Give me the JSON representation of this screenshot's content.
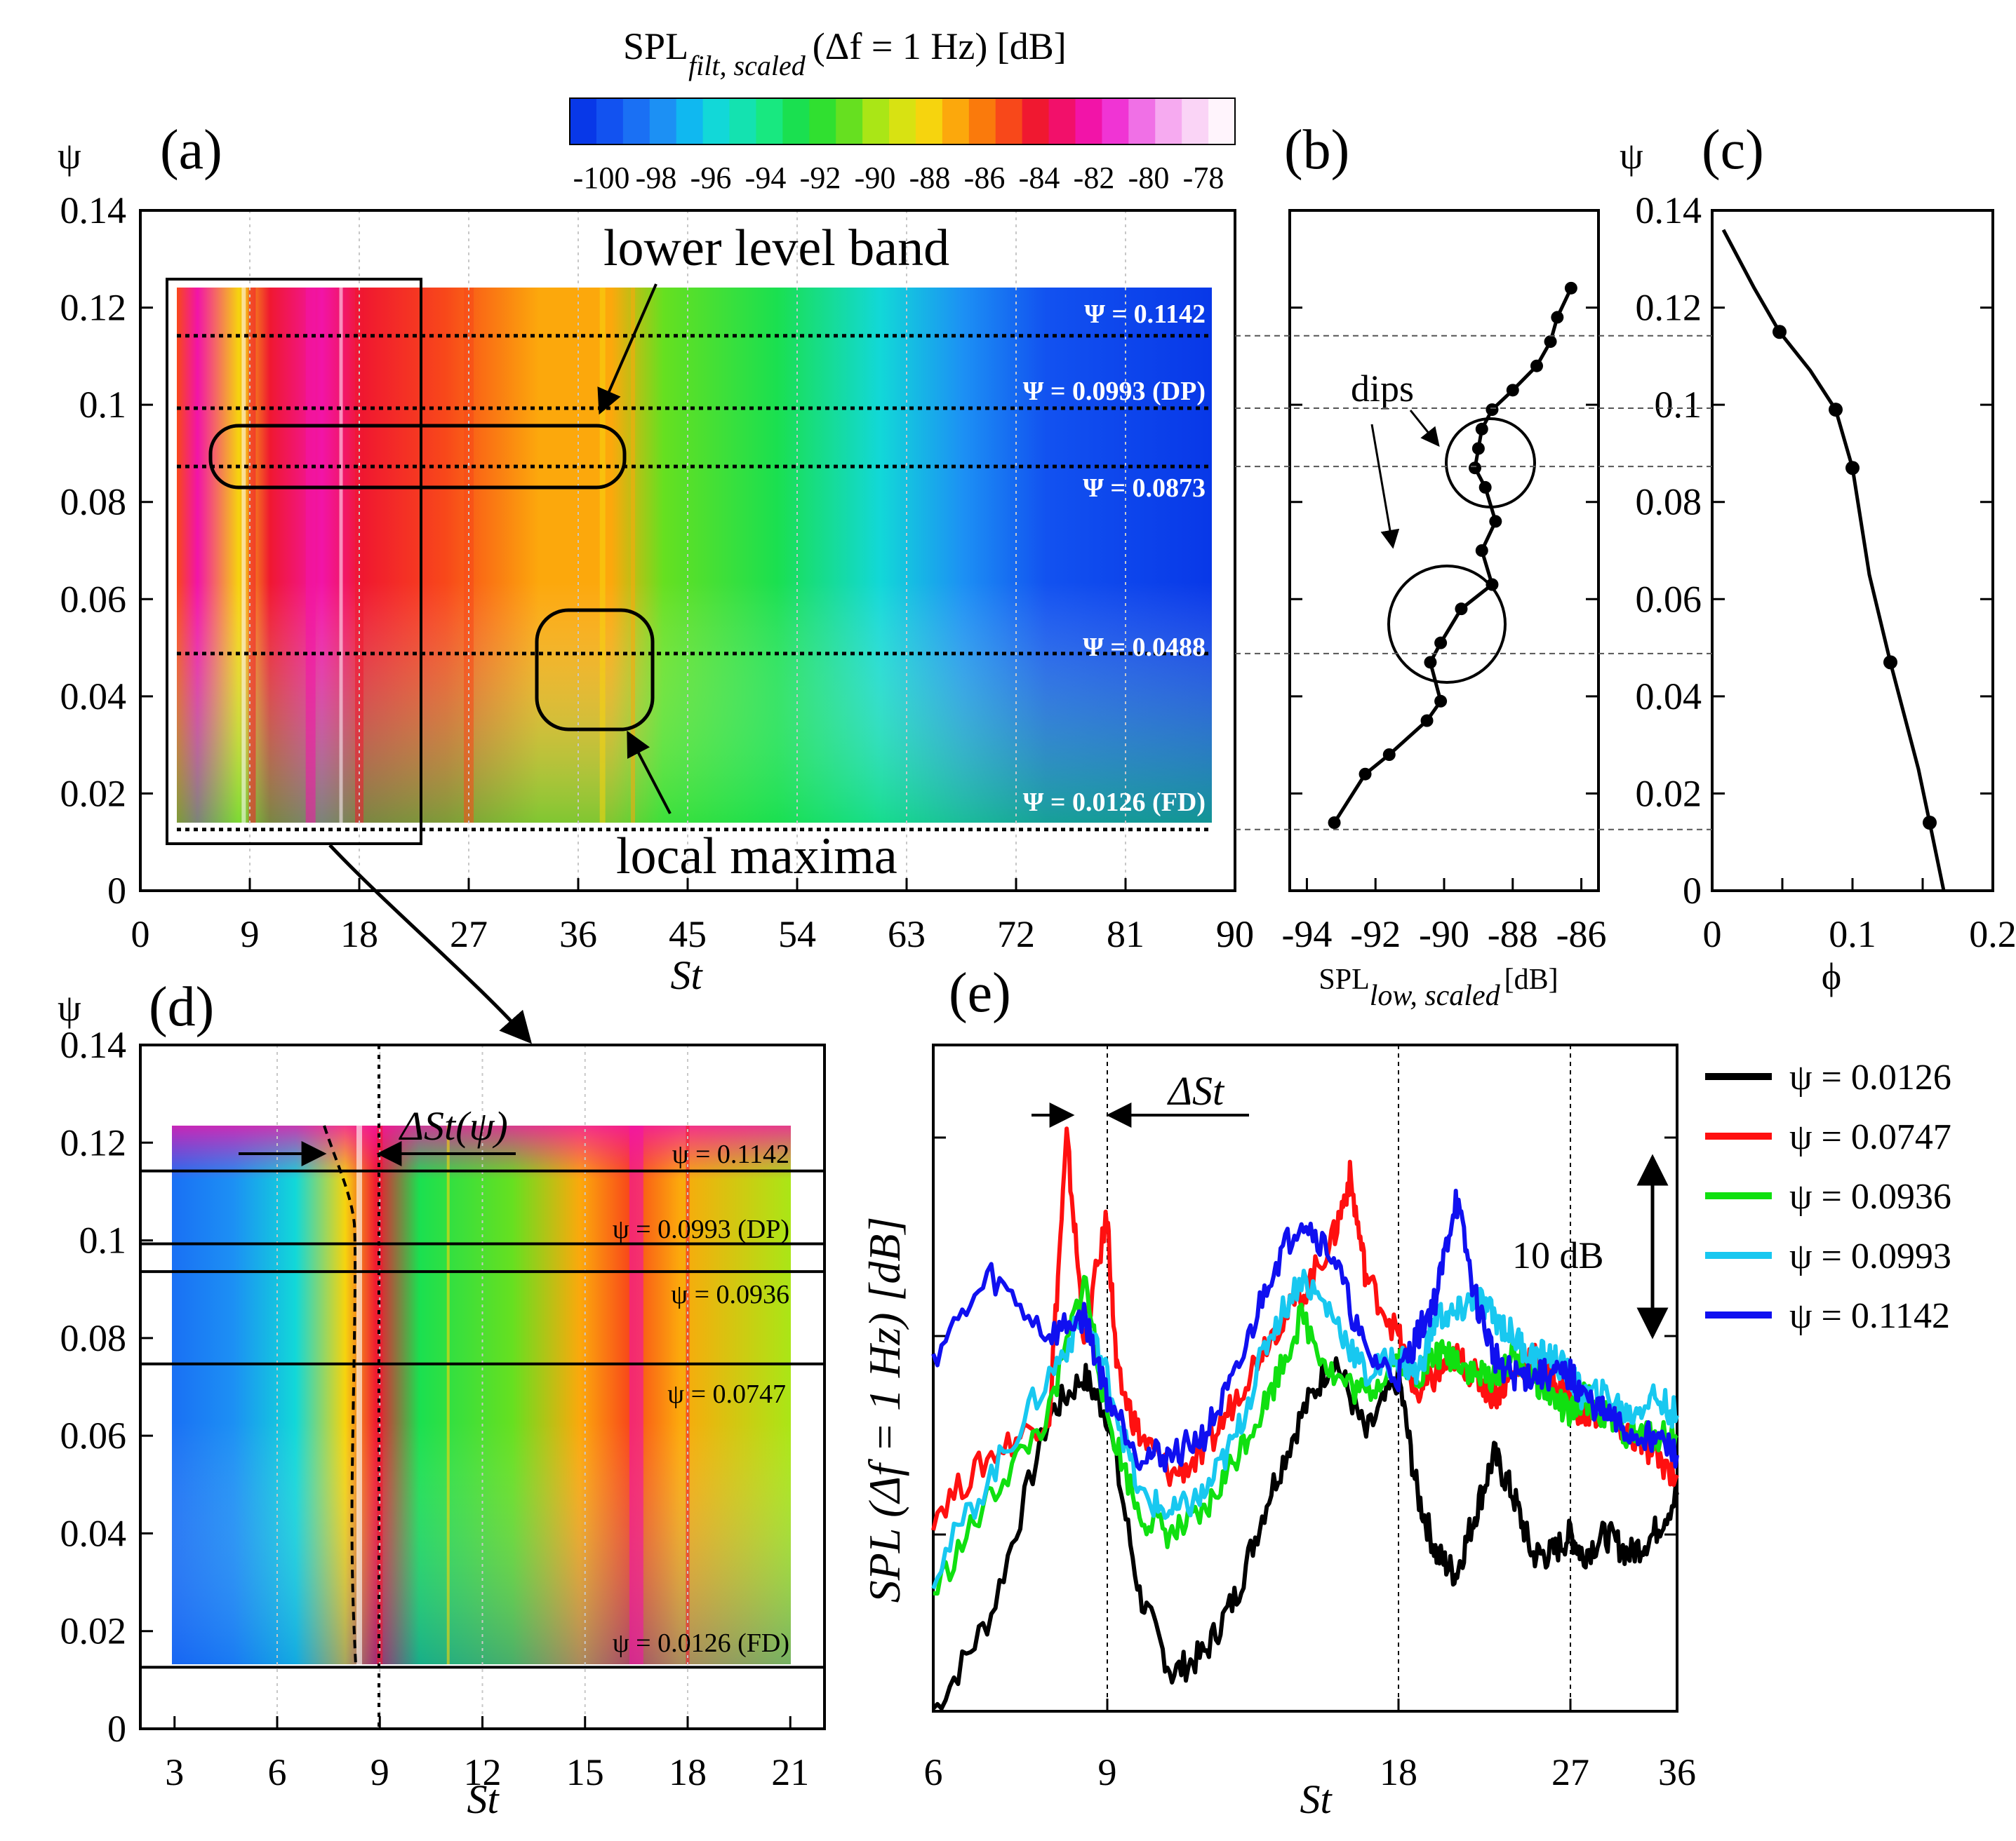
{
  "colorbar": {
    "title": "SPL",
    "title_sub": "filt, scaled",
    "title_rest": "(Δf = 1 Hz) [dB]",
    "tick_labels": [
      "-100",
      "-98",
      "-96",
      "-94",
      "-92",
      "-90",
      "-88",
      "-86",
      "-84",
      "-82",
      "-80",
      "-78"
    ],
    "colors": [
      "#0838e8",
      "#1252f0",
      "#1a70f4",
      "#1c90f4",
      "#10b8f0",
      "#12d8d8",
      "#14e2b0",
      "#18e880",
      "#1ae050",
      "#30e030",
      "#66e020",
      "#aae616",
      "#d8e212",
      "#f6d40e",
      "#fca80c",
      "#fa7a0c",
      "#f8481a",
      "#f01830",
      "#f2106a",
      "#f214a8",
      "#f034d4",
      "#f070e6",
      "#f6aaf0",
      "#fad4f6",
      "#fff4fc"
    ]
  },
  "panel_a": {
    "label": "(a)",
    "ylabel": "ψ",
    "xlabel": "St",
    "x_ticks": [
      "0",
      "9",
      "18",
      "27",
      "36",
      "45",
      "54",
      "63",
      "72",
      "81",
      "90"
    ],
    "y_ticks": [
      "0",
      "0.02",
      "0.04",
      "0.06",
      "0.08",
      "0.1",
      "0.12",
      "0.14"
    ],
    "level_labels": [
      "Ψ = 0.1142",
      "Ψ = 0.0993 (DP)",
      "Ψ = 0.0873",
      "Ψ = 0.0488",
      "Ψ = 0.0126 (FD)"
    ],
    "annotation_band": "lower level band",
    "annotation_max": "local maxima"
  },
  "panel_b": {
    "label": "(b)",
    "x_ticks": [
      "-94",
      "-92",
      "-90",
      "-88",
      "-86"
    ],
    "xlabel": "SPL",
    "xlabel_sub": "low, scaled",
    "xlabel_unit": "[dB]",
    "annotation_dips": "dips"
  },
  "panel_c": {
    "label": "(c)",
    "ylabel": "ψ",
    "xlabel": "ϕ",
    "x_ticks": [
      "0",
      "0.1",
      "0.2"
    ],
    "y_ticks": [
      "0",
      "0.02",
      "0.04",
      "0.06",
      "0.08",
      "0.1",
      "0.12",
      "0.14"
    ]
  },
  "panel_d": {
    "label": "(d)",
    "ylabel": "ψ",
    "xlabel": "St",
    "x_ticks": [
      "3",
      "6",
      "9",
      "12",
      "15",
      "18",
      "21"
    ],
    "y_ticks": [
      "0",
      "0.02",
      "0.04",
      "0.06",
      "0.08",
      "0.1",
      "0.12",
      "0.14"
    ],
    "level_labels": [
      "ψ = 0.1142",
      "ψ = 0.0993 (DP)",
      "ψ = 0.0936",
      "ψ = 0.0747",
      "ψ = 0.0126 (FD)"
    ],
    "delta_label": "ΔSt(ψ)"
  },
  "panel_e": {
    "label": "(e)",
    "ylabel": "SPL (Δf = 1 Hz) [dB]",
    "xlabel": "St",
    "x_ticks": [
      "6",
      "9",
      "18",
      "27",
      "36"
    ],
    "delta_label": "ΔSt",
    "scale_label": "10 dB",
    "legend": [
      {
        "label": "ψ = 0.0126",
        "color": "#000000"
      },
      {
        "label": "ψ = 0.0747",
        "color": "#ff1010"
      },
      {
        "label": "ψ = 0.0936",
        "color": "#10e010"
      },
      {
        "label": "ψ = 0.0993",
        "color": "#18c8f0"
      },
      {
        "label": "ψ = 0.1142",
        "color": "#1010f0"
      }
    ]
  },
  "chart_data": [
    {
      "type": "heatmap",
      "title": "(a)",
      "xlabel": "St",
      "ylabel": "ψ",
      "xlim": [
        0,
        90
      ],
      "ylim": [
        0,
        0.14
      ],
      "colorbar_range_dB": [
        -100,
        -78
      ],
      "data_extent": {
        "st": [
          3,
          88
        ],
        "psi": [
          0.0126,
          0.124
        ]
      },
      "reference_levels_psi": [
        0.1142,
        0.0993,
        0.0873,
        0.0488,
        0.0126
      ]
    },
    {
      "type": "line",
      "title": "(b)",
      "xlabel": "SPL_low,scaled [dB]",
      "ylabel": "ψ",
      "xlim": [
        -94.5,
        -85.5
      ],
      "ylim": [
        0,
        0.14
      ],
      "points": [
        [
          -93.2,
          0.014
        ],
        [
          -92.3,
          0.024
        ],
        [
          -91.6,
          0.028
        ],
        [
          -90.5,
          0.035
        ],
        [
          -90.1,
          0.039
        ],
        [
          -90.4,
          0.047
        ],
        [
          -90.1,
          0.051
        ],
        [
          -89.5,
          0.058
        ],
        [
          -88.6,
          0.063
        ],
        [
          -88.9,
          0.07
        ],
        [
          -88.5,
          0.076
        ],
        [
          -88.8,
          0.083
        ],
        [
          -89.1,
          0.087
        ],
        [
          -89.0,
          0.091
        ],
        [
          -88.9,
          0.095
        ],
        [
          -88.6,
          0.099
        ],
        [
          -88.0,
          0.103
        ],
        [
          -87.3,
          0.108
        ],
        [
          -86.9,
          0.113
        ],
        [
          -86.7,
          0.118
        ],
        [
          -86.3,
          0.124
        ]
      ]
    },
    {
      "type": "line",
      "title": "(c)",
      "xlabel": "ϕ",
      "ylabel": "ψ",
      "xlim": [
        0,
        0.2
      ],
      "ylim": [
        0,
        0.14
      ],
      "curve": [
        [
          0.008,
          0.136
        ],
        [
          0.03,
          0.124
        ],
        [
          0.048,
          0.115
        ],
        [
          0.07,
          0.107
        ],
        [
          0.088,
          0.099
        ],
        [
          0.1,
          0.087
        ],
        [
          0.112,
          0.065
        ],
        [
          0.127,
          0.047
        ],
        [
          0.147,
          0.025
        ],
        [
          0.155,
          0.014
        ],
        [
          0.165,
          0.0
        ]
      ],
      "markers": [
        [
          0.048,
          0.115
        ],
        [
          0.088,
          0.099
        ],
        [
          0.1,
          0.087
        ],
        [
          0.127,
          0.047
        ],
        [
          0.155,
          0.014
        ]
      ]
    },
    {
      "type": "heatmap",
      "title": "(d)",
      "xlabel": "St",
      "ylabel": "ψ",
      "xlim": [
        2,
        22
      ],
      "ylim": [
        0,
        0.14
      ],
      "data_extent": {
        "st": [
          3,
          21
        ],
        "psi": [
          0.0126,
          0.124
        ]
      },
      "reference_levels_psi": [
        0.1142,
        0.0993,
        0.0936,
        0.0747,
        0.0126
      ],
      "reference_st": 9
    },
    {
      "type": "line",
      "title": "(e)",
      "xlabel": "St",
      "ylabel": "SPL (Δf = 1 Hz) [dB]",
      "x_ticks_st": [
        6,
        9,
        18,
        27,
        36
      ],
      "series": [
        {
          "name": "ψ = 0.0126",
          "points": [
            [
              6,
              -19
            ],
            [
              7,
              -14
            ],
            [
              8,
              -4
            ],
            [
              8.6,
              -2
            ],
            [
              9,
              -4
            ],
            [
              10,
              -13
            ],
            [
              11,
              -17
            ],
            [
              12,
              -16
            ],
            [
              13,
              -13
            ],
            [
              14,
              -8
            ],
            [
              15,
              -4
            ],
            [
              16,
              -1
            ],
            [
              17,
              -5
            ],
            [
              18,
              -2
            ],
            [
              19,
              -8
            ],
            [
              20,
              -11
            ],
            [
              21,
              -12
            ],
            [
              22,
              -9
            ],
            [
              23,
              -6
            ],
            [
              24,
              -8
            ],
            [
              25,
              -11
            ],
            [
              26,
              -11
            ],
            [
              27,
              -10
            ],
            [
              28,
              -11
            ],
            [
              30,
              -10
            ],
            [
              32,
              -11
            ],
            [
              34,
              -10
            ],
            [
              36,
              -8
            ]
          ]
        },
        {
          "name": "ψ = 0.0747",
          "points": [
            [
              6,
              -9
            ],
            [
              7,
              -6
            ],
            [
              8,
              -4
            ],
            [
              8.3,
              10
            ],
            [
              8.6,
              0
            ],
            [
              9,
              6
            ],
            [
              9.3,
              -2
            ],
            [
              10,
              -5
            ],
            [
              11,
              -7
            ],
            [
              12,
              -6
            ],
            [
              13,
              -3
            ],
            [
              14,
              0
            ],
            [
              15,
              2
            ],
            [
              16,
              5
            ],
            [
              16.5,
              8
            ],
            [
              17,
              3
            ],
            [
              18,
              0
            ],
            [
              19,
              -3
            ],
            [
              20,
              -2
            ],
            [
              21,
              -1
            ],
            [
              22,
              -2
            ],
            [
              23,
              -3
            ],
            [
              24,
              -2
            ],
            [
              25,
              -1
            ],
            [
              26,
              -2
            ],
            [
              27,
              -3
            ],
            [
              28,
              -4
            ],
            [
              30,
              -4
            ],
            [
              32,
              -5
            ],
            [
              34,
              -6
            ],
            [
              36,
              -7
            ]
          ]
        },
        {
          "name": "ψ = 0.0936",
          "points": [
            [
              6,
              -13
            ],
            [
              7,
              -8
            ],
            [
              8,
              -4
            ],
            [
              8.6,
              3
            ],
            [
              9,
              -4
            ],
            [
              10,
              -9
            ],
            [
              11,
              -10
            ],
            [
              12,
              -9
            ],
            [
              13,
              -6
            ],
            [
              14,
              -3
            ],
            [
              15,
              1
            ],
            [
              16,
              -2
            ],
            [
              17,
              -3
            ],
            [
              18,
              -1
            ],
            [
              19,
              -2
            ],
            [
              20,
              -1
            ],
            [
              21,
              -1
            ],
            [
              22,
              -2
            ],
            [
              23,
              -2
            ],
            [
              24,
              -1
            ],
            [
              25,
              -2
            ],
            [
              26,
              -3
            ],
            [
              27,
              -4
            ],
            [
              28,
              -3
            ],
            [
              30,
              -4
            ],
            [
              32,
              -5
            ],
            [
              34,
              -5
            ],
            [
              36,
              -5
            ]
          ]
        },
        {
          "name": "ψ = 0.0993",
          "points": [
            [
              6,
              -12
            ],
            [
              7,
              -7
            ],
            [
              8,
              -2
            ],
            [
              8.6,
              1
            ],
            [
              9,
              -2
            ],
            [
              10,
              -8
            ],
            [
              11,
              -9
            ],
            [
              12,
              -8
            ],
            [
              13,
              -5
            ],
            [
              14,
              0
            ],
            [
              15,
              3
            ],
            [
              16,
              1
            ],
            [
              17,
              -2
            ],
            [
              18,
              -1
            ],
            [
              19,
              -2
            ],
            [
              20,
              1
            ],
            [
              21,
              1
            ],
            [
              22,
              2
            ],
            [
              23,
              1
            ],
            [
              24,
              0
            ],
            [
              25,
              -1
            ],
            [
              26,
              -1
            ],
            [
              27,
              -2
            ],
            [
              28,
              -3
            ],
            [
              30,
              -3
            ],
            [
              32,
              -4
            ],
            [
              34,
              -3
            ],
            [
              36,
              -4
            ]
          ]
        },
        {
          "name": "ψ = 0.1142",
          "points": [
            [
              6,
              -1
            ],
            [
              7,
              3
            ],
            [
              8,
              0
            ],
            [
              8.6,
              1
            ],
            [
              9,
              -3
            ],
            [
              10,
              -6
            ],
            [
              11,
              -6
            ],
            [
              12,
              -5
            ],
            [
              13,
              -2
            ],
            [
              14,
              3
            ],
            [
              15,
              6
            ],
            [
              16,
              4
            ],
            [
              17,
              -1
            ],
            [
              18,
              -2
            ],
            [
              19,
              0
            ],
            [
              20,
              2
            ],
            [
              21,
              7
            ],
            [
              22,
              2
            ],
            [
              23,
              -1
            ],
            [
              24,
              -2
            ],
            [
              25,
              -2
            ],
            [
              26,
              -2
            ],
            [
              27,
              -2
            ],
            [
              28,
              -3
            ],
            [
              30,
              -4
            ],
            [
              32,
              -5
            ],
            [
              34,
              -5
            ],
            [
              36,
              -6
            ]
          ]
        }
      ]
    }
  ]
}
